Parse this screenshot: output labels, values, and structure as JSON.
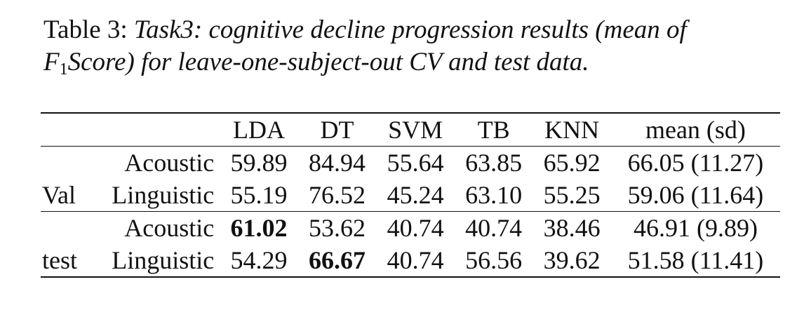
{
  "caption": {
    "label": "Table 3:",
    "text_part1": "Task3: cognitive decline progression results (mean of",
    "f_symbol": "F",
    "f_sub": "1",
    "score_word": "Score",
    "text_part2": ") for leave-one-subject-out CV and test data."
  },
  "table": {
    "headers": [
      "",
      "",
      "LDA",
      "DT",
      "SVM",
      "TB",
      "KNN",
      "mean (sd)"
    ],
    "groups": [
      {
        "name": "Val",
        "rows": [
          {
            "feature": "Acoustic",
            "values": [
              "59.89",
              "84.94",
              "55.64",
              "63.85",
              "65.92"
            ],
            "mean_sd": "66.05 (11.27)",
            "bold_index": -1
          },
          {
            "feature": "Linguistic",
            "values": [
              "55.19",
              "76.52",
              "45.24",
              "63.10",
              "55.25"
            ],
            "mean_sd": "59.06 (11.64)",
            "bold_index": -1
          }
        ]
      },
      {
        "name": "test",
        "rows": [
          {
            "feature": "Acoustic",
            "values": [
              "61.02",
              "53.62",
              "40.74",
              "40.74",
              "38.46"
            ],
            "mean_sd": "46.91 (9.89)",
            "bold_index": 0
          },
          {
            "feature": "Linguistic",
            "values": [
              "54.29",
              "66.67",
              "40.74",
              "56.56",
              "39.62"
            ],
            "mean_sd": "51.58 (11.41)",
            "bold_index": 1
          }
        ]
      }
    ]
  }
}
